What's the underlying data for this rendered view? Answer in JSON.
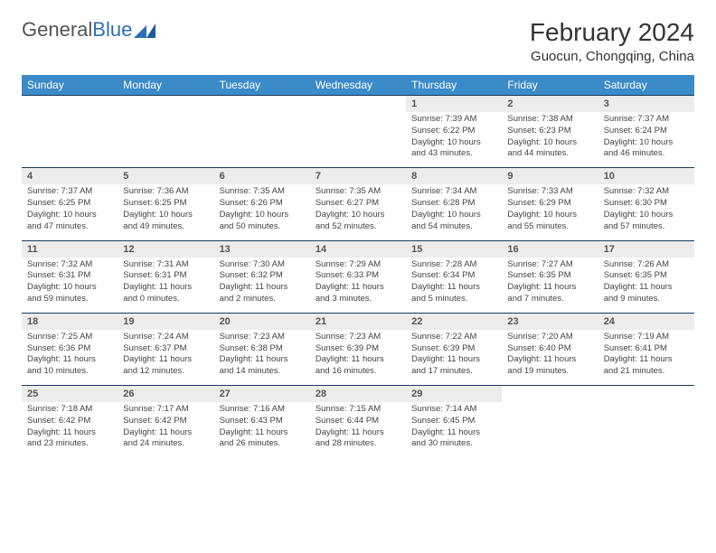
{
  "brand": {
    "part1": "General",
    "part2": "Blue"
  },
  "title": "February 2024",
  "location": "Guocun, Chongqing, China",
  "colors": {
    "header_bg": "#3b8bc9",
    "header_text": "#ffffff",
    "daynum_bg": "#ececec",
    "border": "#1a3a5a",
    "logo_blue": "#2d6fb5",
    "body_text": "#444"
  },
  "weekdays": [
    "Sunday",
    "Monday",
    "Tuesday",
    "Wednesday",
    "Thursday",
    "Friday",
    "Saturday"
  ],
  "weeks": [
    {
      "nums": [
        "",
        "",
        "",
        "",
        "1",
        "2",
        "3"
      ],
      "cells": [
        null,
        null,
        null,
        null,
        {
          "sunrise": "Sunrise: 7:39 AM",
          "sunset": "Sunset: 6:22 PM",
          "daylight1": "Daylight: 10 hours",
          "daylight2": "and 43 minutes."
        },
        {
          "sunrise": "Sunrise: 7:38 AM",
          "sunset": "Sunset: 6:23 PM",
          "daylight1": "Daylight: 10 hours",
          "daylight2": "and 44 minutes."
        },
        {
          "sunrise": "Sunrise: 7:37 AM",
          "sunset": "Sunset: 6:24 PM",
          "daylight1": "Daylight: 10 hours",
          "daylight2": "and 46 minutes."
        }
      ]
    },
    {
      "nums": [
        "4",
        "5",
        "6",
        "7",
        "8",
        "9",
        "10"
      ],
      "cells": [
        {
          "sunrise": "Sunrise: 7:37 AM",
          "sunset": "Sunset: 6:25 PM",
          "daylight1": "Daylight: 10 hours",
          "daylight2": "and 47 minutes."
        },
        {
          "sunrise": "Sunrise: 7:36 AM",
          "sunset": "Sunset: 6:25 PM",
          "daylight1": "Daylight: 10 hours",
          "daylight2": "and 49 minutes."
        },
        {
          "sunrise": "Sunrise: 7:35 AM",
          "sunset": "Sunset: 6:26 PM",
          "daylight1": "Daylight: 10 hours",
          "daylight2": "and 50 minutes."
        },
        {
          "sunrise": "Sunrise: 7:35 AM",
          "sunset": "Sunset: 6:27 PM",
          "daylight1": "Daylight: 10 hours",
          "daylight2": "and 52 minutes."
        },
        {
          "sunrise": "Sunrise: 7:34 AM",
          "sunset": "Sunset: 6:28 PM",
          "daylight1": "Daylight: 10 hours",
          "daylight2": "and 54 minutes."
        },
        {
          "sunrise": "Sunrise: 7:33 AM",
          "sunset": "Sunset: 6:29 PM",
          "daylight1": "Daylight: 10 hours",
          "daylight2": "and 55 minutes."
        },
        {
          "sunrise": "Sunrise: 7:32 AM",
          "sunset": "Sunset: 6:30 PM",
          "daylight1": "Daylight: 10 hours",
          "daylight2": "and 57 minutes."
        }
      ]
    },
    {
      "nums": [
        "11",
        "12",
        "13",
        "14",
        "15",
        "16",
        "17"
      ],
      "cells": [
        {
          "sunrise": "Sunrise: 7:32 AM",
          "sunset": "Sunset: 6:31 PM",
          "daylight1": "Daylight: 10 hours",
          "daylight2": "and 59 minutes."
        },
        {
          "sunrise": "Sunrise: 7:31 AM",
          "sunset": "Sunset: 6:31 PM",
          "daylight1": "Daylight: 11 hours",
          "daylight2": "and 0 minutes."
        },
        {
          "sunrise": "Sunrise: 7:30 AM",
          "sunset": "Sunset: 6:32 PM",
          "daylight1": "Daylight: 11 hours",
          "daylight2": "and 2 minutes."
        },
        {
          "sunrise": "Sunrise: 7:29 AM",
          "sunset": "Sunset: 6:33 PM",
          "daylight1": "Daylight: 11 hours",
          "daylight2": "and 3 minutes."
        },
        {
          "sunrise": "Sunrise: 7:28 AM",
          "sunset": "Sunset: 6:34 PM",
          "daylight1": "Daylight: 11 hours",
          "daylight2": "and 5 minutes."
        },
        {
          "sunrise": "Sunrise: 7:27 AM",
          "sunset": "Sunset: 6:35 PM",
          "daylight1": "Daylight: 11 hours",
          "daylight2": "and 7 minutes."
        },
        {
          "sunrise": "Sunrise: 7:26 AM",
          "sunset": "Sunset: 6:35 PM",
          "daylight1": "Daylight: 11 hours",
          "daylight2": "and 9 minutes."
        }
      ]
    },
    {
      "nums": [
        "18",
        "19",
        "20",
        "21",
        "22",
        "23",
        "24"
      ],
      "cells": [
        {
          "sunrise": "Sunrise: 7:25 AM",
          "sunset": "Sunset: 6:36 PM",
          "daylight1": "Daylight: 11 hours",
          "daylight2": "and 10 minutes."
        },
        {
          "sunrise": "Sunrise: 7:24 AM",
          "sunset": "Sunset: 6:37 PM",
          "daylight1": "Daylight: 11 hours",
          "daylight2": "and 12 minutes."
        },
        {
          "sunrise": "Sunrise: 7:23 AM",
          "sunset": "Sunset: 6:38 PM",
          "daylight1": "Daylight: 11 hours",
          "daylight2": "and 14 minutes."
        },
        {
          "sunrise": "Sunrise: 7:23 AM",
          "sunset": "Sunset: 6:39 PM",
          "daylight1": "Daylight: 11 hours",
          "daylight2": "and 16 minutes."
        },
        {
          "sunrise": "Sunrise: 7:22 AM",
          "sunset": "Sunset: 6:39 PM",
          "daylight1": "Daylight: 11 hours",
          "daylight2": "and 17 minutes."
        },
        {
          "sunrise": "Sunrise: 7:20 AM",
          "sunset": "Sunset: 6:40 PM",
          "daylight1": "Daylight: 11 hours",
          "daylight2": "and 19 minutes."
        },
        {
          "sunrise": "Sunrise: 7:19 AM",
          "sunset": "Sunset: 6:41 PM",
          "daylight1": "Daylight: 11 hours",
          "daylight2": "and 21 minutes."
        }
      ]
    },
    {
      "nums": [
        "25",
        "26",
        "27",
        "28",
        "29",
        "",
        ""
      ],
      "cells": [
        {
          "sunrise": "Sunrise: 7:18 AM",
          "sunset": "Sunset: 6:42 PM",
          "daylight1": "Daylight: 11 hours",
          "daylight2": "and 23 minutes."
        },
        {
          "sunrise": "Sunrise: 7:17 AM",
          "sunset": "Sunset: 6:42 PM",
          "daylight1": "Daylight: 11 hours",
          "daylight2": "and 24 minutes."
        },
        {
          "sunrise": "Sunrise: 7:16 AM",
          "sunset": "Sunset: 6:43 PM",
          "daylight1": "Daylight: 11 hours",
          "daylight2": "and 26 minutes."
        },
        {
          "sunrise": "Sunrise: 7:15 AM",
          "sunset": "Sunset: 6:44 PM",
          "daylight1": "Daylight: 11 hours",
          "daylight2": "and 28 minutes."
        },
        {
          "sunrise": "Sunrise: 7:14 AM",
          "sunset": "Sunset: 6:45 PM",
          "daylight1": "Daylight: 11 hours",
          "daylight2": "and 30 minutes."
        },
        null,
        null
      ]
    }
  ]
}
